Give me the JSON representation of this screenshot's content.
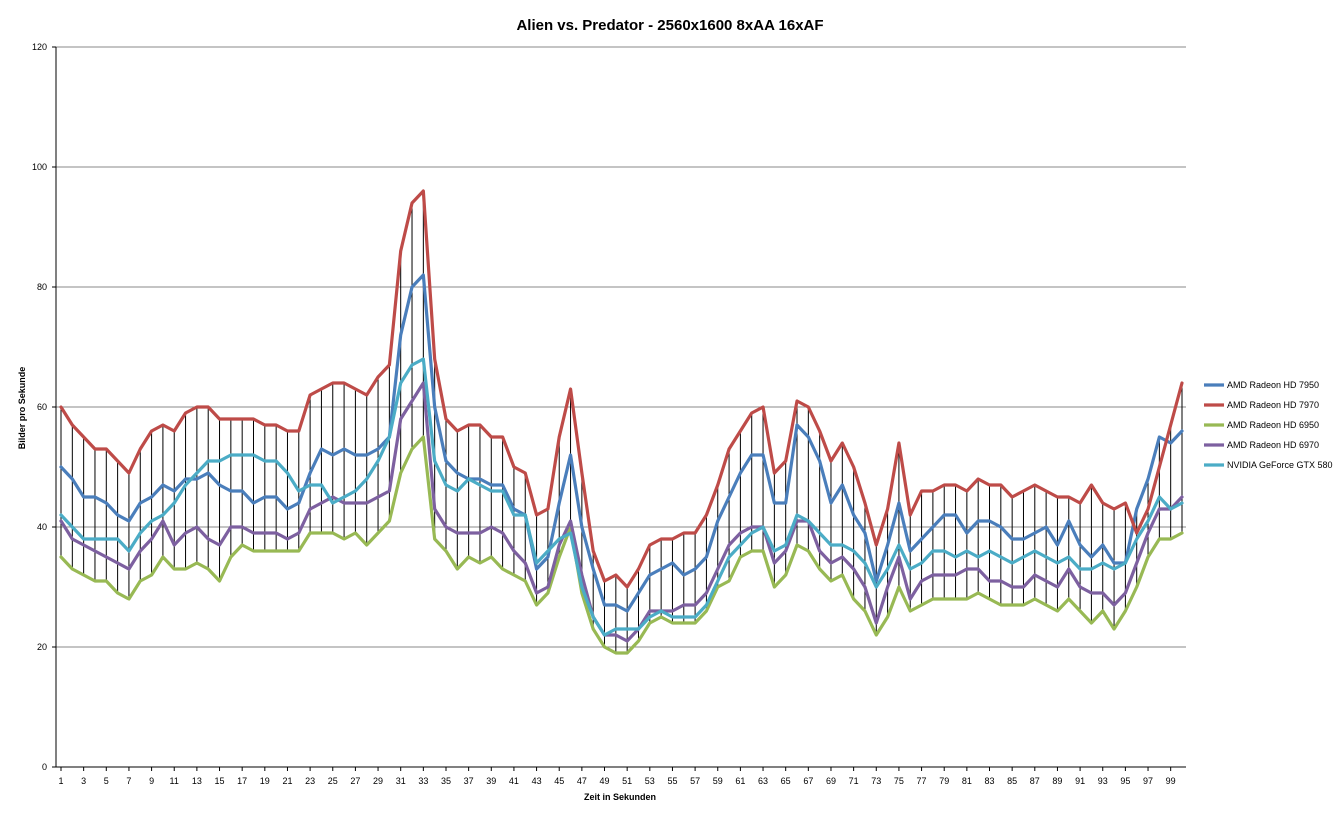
{
  "chart_data": {
    "type": "line",
    "title": "Alien vs. Predator - 2560x1600 8xAA 16xAF",
    "xlabel": "Zeit in Sekunden",
    "ylabel": "Bilder pro Sekunde",
    "ylim": [
      0,
      120
    ],
    "yticks": [
      0,
      20,
      40,
      60,
      80,
      100,
      120
    ],
    "xlim": [
      1,
      100
    ],
    "xtick_step": 2,
    "grid": "horizontal",
    "legend_position": "right",
    "drop_lines": true,
    "series": [
      {
        "name": "AMD Radeon HD 7950",
        "color": "#4a7ebb",
        "values": [
          50,
          48,
          45,
          45,
          44,
          42,
          41,
          44,
          45,
          47,
          46,
          48,
          48,
          49,
          47,
          46,
          46,
          44,
          45,
          45,
          43,
          44,
          49,
          53,
          52,
          53,
          52,
          52,
          53,
          55,
          72,
          80,
          82,
          60,
          51,
          49,
          48,
          48,
          47,
          47,
          43,
          42,
          33,
          35,
          44,
          52,
          40,
          33,
          27,
          27,
          26,
          29,
          32,
          33,
          34,
          32,
          33,
          35,
          41,
          45,
          49,
          52,
          52,
          44,
          44,
          57,
          55,
          51,
          44,
          47,
          42,
          39,
          31,
          37,
          44,
          36,
          38,
          40,
          42,
          42,
          39,
          41,
          41,
          40,
          38,
          38,
          39,
          40,
          37,
          41,
          37,
          35,
          37,
          34,
          34,
          43,
          48,
          55,
          54,
          56
        ]
      },
      {
        "name": "AMD Radeon HD 7970",
        "color": "#be4b48",
        "values": [
          60,
          57,
          55,
          53,
          53,
          51,
          49,
          53,
          56,
          57,
          56,
          59,
          60,
          60,
          58,
          58,
          58,
          58,
          57,
          57,
          56,
          56,
          62,
          63,
          64,
          64,
          63,
          62,
          65,
          67,
          86,
          94,
          96,
          68,
          58,
          56,
          57,
          57,
          55,
          55,
          50,
          49,
          42,
          43,
          55,
          63,
          49,
          36,
          31,
          32,
          30,
          33,
          37,
          38,
          38,
          39,
          39,
          42,
          47,
          53,
          56,
          59,
          60,
          49,
          51,
          61,
          60,
          56,
          51,
          54,
          50,
          44,
          37,
          43,
          54,
          42,
          46,
          46,
          47,
          47,
          46,
          48,
          47,
          47,
          45,
          46,
          47,
          46,
          45,
          45,
          44,
          47,
          44,
          43,
          44,
          39,
          43,
          50,
          57,
          64
        ]
      },
      {
        "name": "AMD Radeon HD 6950",
        "color": "#98b954",
        "values": [
          35,
          33,
          32,
          31,
          31,
          29,
          28,
          31,
          32,
          35,
          33,
          33,
          34,
          33,
          31,
          35,
          37,
          36,
          36,
          36,
          36,
          36,
          39,
          39,
          39,
          38,
          39,
          37,
          39,
          41,
          49,
          53,
          55,
          38,
          36,
          33,
          35,
          34,
          35,
          33,
          32,
          31,
          27,
          29,
          35,
          40,
          29,
          23,
          20,
          19,
          19,
          21,
          24,
          25,
          24,
          24,
          24,
          26,
          30,
          31,
          35,
          36,
          36,
          30,
          32,
          37,
          36,
          33,
          31,
          32,
          28,
          26,
          22,
          25,
          30,
          26,
          27,
          28,
          28,
          28,
          28,
          29,
          28,
          27,
          27,
          27,
          28,
          27,
          26,
          28,
          26,
          24,
          26,
          23,
          26,
          30,
          35,
          38,
          38,
          39
        ]
      },
      {
        "name": "AMD Radeon HD 6970",
        "color": "#7d60a0",
        "values": [
          41,
          38,
          37,
          36,
          35,
          34,
          33,
          36,
          38,
          41,
          37,
          39,
          40,
          38,
          37,
          40,
          40,
          39,
          39,
          39,
          38,
          39,
          43,
          44,
          45,
          44,
          44,
          44,
          45,
          46,
          58,
          61,
          64,
          43,
          40,
          39,
          39,
          39,
          40,
          39,
          36,
          34,
          29,
          30,
          37,
          41,
          32,
          25,
          22,
          22,
          21,
          23,
          26,
          26,
          26,
          27,
          27,
          29,
          33,
          37,
          39,
          40,
          40,
          34,
          36,
          41,
          41,
          36,
          34,
          35,
          33,
          30,
          24,
          30,
          35,
          28,
          31,
          32,
          32,
          32,
          33,
          33,
          31,
          31,
          30,
          30,
          32,
          31,
          30,
          33,
          30,
          29,
          29,
          27,
          29,
          34,
          39,
          43,
          43,
          45
        ]
      },
      {
        "name": "NVIDIA GeForce GTX 580",
        "color": "#4bacc6",
        "values": [
          42,
          40,
          38,
          38,
          38,
          38,
          36,
          39,
          41,
          42,
          44,
          47,
          49,
          51,
          51,
          52,
          52,
          52,
          51,
          51,
          49,
          46,
          47,
          47,
          44,
          45,
          46,
          48,
          51,
          55,
          64,
          67,
          68,
          51,
          47,
          46,
          48,
          47,
          46,
          46,
          42,
          42,
          34,
          36,
          38,
          39,
          30,
          25,
          22,
          23,
          23,
          23,
          25,
          26,
          25,
          25,
          25,
          27,
          31,
          35,
          37,
          39,
          40,
          36,
          37,
          42,
          41,
          39,
          37,
          37,
          36,
          34,
          30,
          33,
          37,
          33,
          34,
          36,
          36,
          35,
          36,
          35,
          36,
          35,
          34,
          35,
          36,
          35,
          34,
          35,
          33,
          33,
          34,
          33,
          34,
          38,
          41,
          45,
          43,
          44
        ]
      }
    ]
  }
}
